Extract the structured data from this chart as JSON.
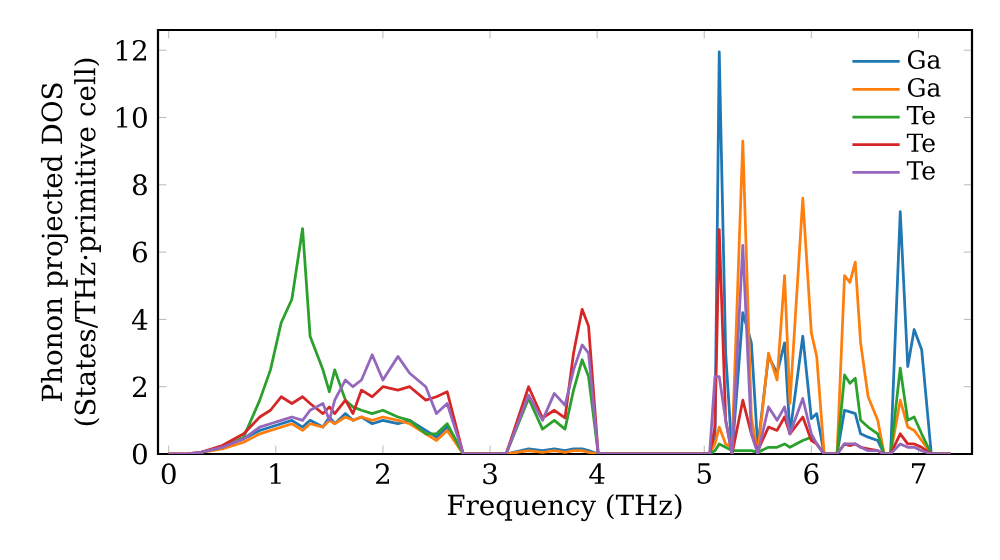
{
  "chart_data": {
    "type": "line",
    "xlabel": "Frequency (THz)",
    "ylabel": "Phonon projected DOS (States/THz·primitive cell)",
    "xlim": [
      -0.1,
      7.5
    ],
    "ylim": [
      0,
      12.6
    ],
    "xticks": [
      0,
      1,
      2,
      3,
      4,
      5,
      6,
      7
    ],
    "yticks": [
      0,
      2,
      4,
      6,
      8,
      10,
      12
    ],
    "grid": false,
    "legend": "top right",
    "marker": "none",
    "line_style": "solid",
    "x": [
      0,
      0.15,
      0.3,
      0.5,
      0.7,
      0.85,
      0.95,
      1.05,
      1.15,
      1.25,
      1.32,
      1.44,
      1.5,
      1.55,
      1.65,
      1.72,
      1.8,
      1.9,
      2.0,
      2.14,
      2.25,
      2.4,
      2.5,
      2.6,
      2.75,
      3.15,
      3.36,
      3.49,
      3.6,
      3.7,
      3.78,
      3.86,
      3.92,
      4.01,
      5.05,
      5.1,
      5.14,
      5.2,
      5.26,
      5.36,
      5.44,
      5.5,
      5.6,
      5.68,
      5.75,
      5.8,
      5.92,
      6.0,
      6.05,
      6.12,
      6.24,
      6.31,
      6.36,
      6.41,
      6.46,
      6.53,
      6.62,
      6.68,
      6.74,
      6.83,
      6.9,
      6.96,
      7.03,
      7.12,
      7.3
    ],
    "series": [
      {
        "name": "Ga",
        "color": "#1f77b4",
        "values": [
          null,
          null,
          null,
          0.2,
          0.45,
          0.7,
          0.8,
          0.9,
          1.0,
          0.8,
          1.0,
          0.8,
          1.1,
          0.9,
          1.2,
          1.0,
          1.1,
          0.9,
          1.0,
          0.9,
          1.0,
          0.7,
          0.5,
          0.8,
          0,
          0,
          0.15,
          0.1,
          0.15,
          0.1,
          0.15,
          0.15,
          0.1,
          0,
          0,
          0.5,
          11.95,
          3.0,
          0,
          4.2,
          3.3,
          0.2,
          2.9,
          2.4,
          3.3,
          0.6,
          3.5,
          1.05,
          1.2,
          0,
          0,
          1.3,
          1.25,
          1.2,
          0.6,
          0.5,
          0.4,
          0,
          0,
          7.2,
          2.6,
          3.7,
          3.1,
          0,
          0
        ]
      },
      {
        "name": "Ga",
        "color": "#ff7f0e",
        "values": [
          0,
          0,
          0.05,
          0.15,
          0.35,
          0.6,
          0.7,
          0.8,
          0.9,
          0.7,
          0.9,
          0.8,
          1.0,
          0.9,
          1.1,
          1.0,
          1.1,
          1.0,
          1.1,
          1.0,
          0.9,
          0.6,
          0.4,
          0.7,
          0,
          0,
          0.1,
          0.05,
          0.1,
          0.05,
          0.1,
          0.1,
          0.05,
          0,
          0,
          0.3,
          0.8,
          0.3,
          0.2,
          9.3,
          1.1,
          0,
          3.0,
          2.2,
          5.3,
          1.5,
          7.6,
          3.6,
          2.9,
          0,
          0,
          5.3,
          5.1,
          5.7,
          3.3,
          1.7,
          1.0,
          0,
          0,
          1.6,
          0.8,
          0.7,
          0.4,
          0,
          0
        ]
      },
      {
        "name": "Te",
        "color": "#2ca02c",
        "values": [
          null,
          null,
          0.05,
          0.2,
          0.5,
          1.6,
          2.5,
          3.9,
          4.6,
          6.7,
          3.5,
          2.5,
          1.85,
          2.5,
          1.6,
          1.4,
          1.3,
          1.2,
          1.3,
          1.1,
          1.0,
          0.6,
          0.6,
          0.9,
          0,
          0,
          1.65,
          0.74,
          1.0,
          0.74,
          1.9,
          2.8,
          2.3,
          0,
          0,
          0.1,
          0.3,
          0.2,
          0.1,
          0.1,
          0.1,
          0.05,
          0.2,
          0.2,
          0.3,
          0.2,
          0.4,
          0.5,
          0.3,
          0,
          0,
          2.35,
          2.1,
          2.25,
          1.0,
          0.8,
          0.6,
          0,
          0,
          2.55,
          1.0,
          1.1,
          0.6,
          0,
          0
        ]
      },
      {
        "name": "Te",
        "color": "#d62728",
        "values": [
          0,
          0,
          0.05,
          0.25,
          0.6,
          1.1,
          1.3,
          1.7,
          1.5,
          1.7,
          1.5,
          1.2,
          1.4,
          1.2,
          1.6,
          1.2,
          1.9,
          1.7,
          2.0,
          1.9,
          2.0,
          1.6,
          1.7,
          1.85,
          0,
          0,
          2.0,
          1.07,
          1.3,
          1.07,
          3.0,
          4.3,
          3.8,
          0,
          0,
          0.8,
          6.67,
          1.0,
          0,
          1.6,
          0.6,
          0.1,
          0.8,
          0.7,
          1.1,
          0.6,
          1.1,
          0.4,
          0.3,
          0,
          0,
          0.3,
          0.25,
          0.3,
          0.2,
          0.15,
          0.1,
          0,
          0,
          0.6,
          0.3,
          0.3,
          0.2,
          0,
          0
        ]
      },
      {
        "name": "Te",
        "color": "#9467bd",
        "values": [
          0,
          0,
          0.05,
          0.2,
          0.45,
          0.8,
          0.9,
          1.0,
          1.1,
          1.0,
          1.3,
          1.5,
          1.0,
          1.6,
          2.2,
          2.0,
          2.2,
          2.95,
          2.2,
          2.9,
          2.4,
          2.0,
          1.2,
          1.5,
          0,
          0,
          1.75,
          1.0,
          1.8,
          1.45,
          2.5,
          3.24,
          3.0,
          0,
          0,
          2.3,
          2.3,
          1.0,
          0,
          6.2,
          0.6,
          0,
          1.4,
          1.0,
          1.4,
          0.6,
          1.65,
          0.6,
          0.3,
          0,
          0,
          0.3,
          0.3,
          0.3,
          0.2,
          0.1,
          0.1,
          0,
          0,
          0.3,
          0.2,
          0.2,
          0.1,
          0,
          0
        ]
      }
    ]
  }
}
